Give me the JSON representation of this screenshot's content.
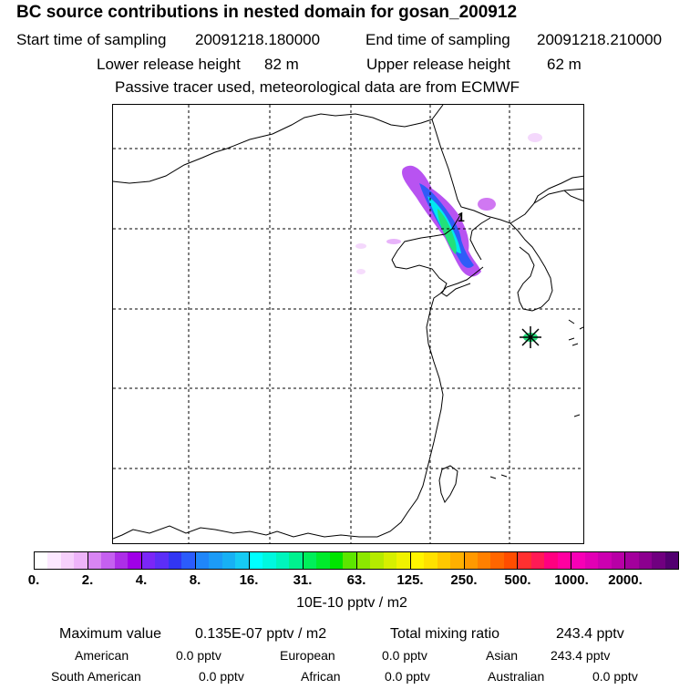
{
  "header": {
    "title": "BC  source contributions in nested domain for gosan_200912",
    "start_label": "Start time of sampling",
    "start_value": "20091218.180000",
    "end_label": "End time of sampling",
    "end_value": "20091218.210000",
    "lower_label": "Lower release height",
    "lower_value": "82 m",
    "upper_label": "Upper release height",
    "upper_value": "62 m",
    "info": "Passive tracer used, meteorological data are from ECMWF"
  },
  "map": {
    "receptor_marker": "asterisk-icon",
    "release_label": "1"
  },
  "colorbar": {
    "colors": [
      "#ffffff",
      "#fce8ff",
      "#f6d0fc",
      "#eeb4fa",
      "#d885f3",
      "#c560f0",
      "#ad2ee8",
      "#a000e8",
      "#7b26f7",
      "#5c2ef7",
      "#3236f3",
      "#2b5cfc",
      "#1f86fa",
      "#1c9bf7",
      "#17b0f4",
      "#16cbf4",
      "#00ffff",
      "#00f8df",
      "#00f5bd",
      "#00f28f",
      "#00ef5a",
      "#00eb2c",
      "#00e500",
      "#5de600",
      "#8ce800",
      "#b5eb00",
      "#d6ef00",
      "#f0f200",
      "#fff500",
      "#ffe100",
      "#ffc800",
      "#ffb000",
      "#ff9900",
      "#ff8000",
      "#ff6600",
      "#ff4d00",
      "#ff3030",
      "#ff1a55",
      "#ff0080",
      "#ff00a0",
      "#f700b6",
      "#e200b4",
      "#cc00b0",
      "#b800a6",
      "#a3009c",
      "#8c008f",
      "#700080",
      "#520070"
    ],
    "tick_labels": [
      "0.",
      "2.",
      "4.",
      "8.",
      "16.",
      "31.",
      "63.",
      "125.",
      "250.",
      "500.",
      "1000.",
      "2000."
    ],
    "unit": "10E-10 pptv / m2"
  },
  "stats": {
    "max_label": "Maximum value",
    "max_value": "0.135E-07 pptv / m2",
    "total_label": "Total mixing ratio",
    "total_value": "243.4 pptv"
  },
  "regions": {
    "american_label": "American",
    "american_value": "0.0 pptv",
    "european_label": "European",
    "european_value": "0.0 pptv",
    "asian_label": "Asian",
    "asian_value": "243.4 pptv",
    "south_american_label": "South American",
    "south_american_value": "0.0 pptv",
    "african_label": "African",
    "african_value": "0.0 pptv",
    "australian_label": "Australian",
    "australian_value": "0.0 pptv"
  }
}
